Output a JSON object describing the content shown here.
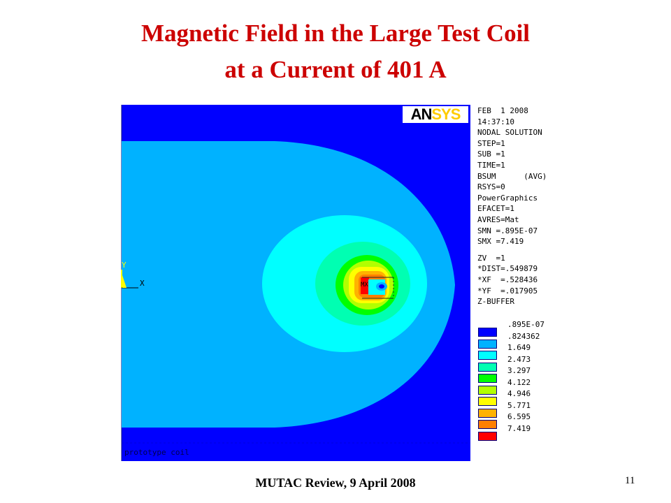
{
  "title": {
    "line1": "Magnetic Field in the Large Test Coil",
    "line2": "at a Current of 401 A"
  },
  "plot": {
    "logo_part1": "AN",
    "logo_part2": "SYS",
    "caption": "prototype coil",
    "axis_y_label": "Y",
    "axis_x_label": "X",
    "mx_label": "MX",
    "info_lines": [
      "FEB  1 2008",
      "14:37:10",
      "NODAL SOLUTION",
      "STEP=1",
      "SUB =1",
      "TIME=1",
      "BSUM      (AVG)",
      "RSYS=0",
      "PowerGraphics",
      "EFACET=1",
      "AVRES=Mat",
      "SMN =.895E-07",
      "SMX =7.419"
    ],
    "view_lines": [
      "ZV  =1",
      "*DIST=.549879",
      "*XF  =.528436",
      "*YF  =.017905",
      "Z-BUFFER"
    ],
    "legend": [
      {
        "value": ".895E-07",
        "color": "#0000ff"
      },
      {
        "value": ".824362",
        "color": "#00b2ff"
      },
      {
        "value": "1.649",
        "color": "#00ffff"
      },
      {
        "value": "2.473",
        "color": "#00ffb2"
      },
      {
        "value": "3.297",
        "color": "#00ff00"
      },
      {
        "value": "4.122",
        "color": "#b2ff00"
      },
      {
        "value": "4.946",
        "color": "#ffff00"
      },
      {
        "value": "5.771",
        "color": "#ffb200"
      },
      {
        "value": "6.595",
        "color": "#ff7f00"
      },
      {
        "value": "7.419",
        "color": "#ff0000"
      }
    ]
  },
  "footer": "MUTAC Review, 9 April 2008",
  "page_number": "11"
}
